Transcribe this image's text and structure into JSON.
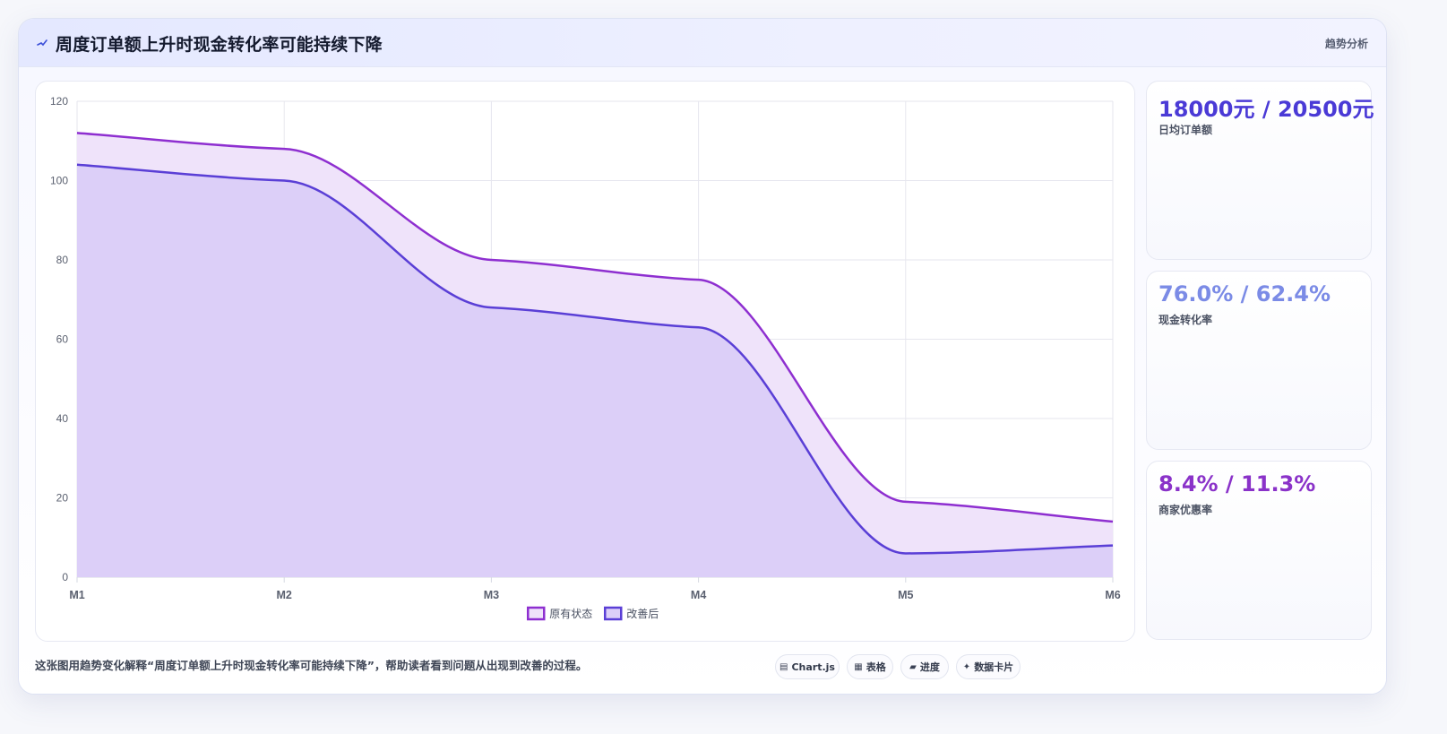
{
  "header": {
    "title": "周度订单额上升时现金转化率可能持续下降",
    "tag": "趋势分析"
  },
  "stats": [
    {
      "value": "18000元 / 20500元",
      "label": "日均订单额",
      "color": "#4a3ad6"
    },
    {
      "value": "76.0% / 62.4%",
      "label": "现金转化率",
      "color": "#7b8be6"
    },
    {
      "value": "8.4% / 11.3%",
      "label": "商家优惠率",
      "color": "#8a32c9"
    }
  ],
  "footer": {
    "caption": "这张图用趋势变化解释“周度订单额上升时现金转化率可能持续下降”，帮助读者看到问题从出现到改善的过程。",
    "pills": [
      {
        "icon": "chart-icon",
        "glyph": "▤",
        "label": "Chart.js"
      },
      {
        "icon": "table-icon",
        "glyph": "▦",
        "label": "表格"
      },
      {
        "icon": "progress-icon",
        "glyph": "▰",
        "label": "进度"
      },
      {
        "icon": "data-card-icon",
        "glyph": "✦",
        "label": "数据卡片"
      }
    ]
  },
  "chart_data": {
    "type": "area",
    "categories": [
      "M1",
      "M2",
      "M3",
      "M4",
      "M5",
      "M6"
    ],
    "ylim": [
      0,
      120
    ],
    "yticks": [
      0,
      20,
      40,
      60,
      80,
      100,
      120
    ],
    "grid": true,
    "legend_position": "bottom",
    "series": [
      {
        "name": "原有状态",
        "values": [
          112,
          108,
          80,
          75,
          19,
          14
        ],
        "color": "#8e2fd0",
        "fill": "#efe3fa"
      },
      {
        "name": "改善后",
        "values": [
          104,
          100,
          68,
          63,
          6,
          8
        ],
        "color": "#5a3fd6",
        "fill": "#dccff8"
      }
    ]
  }
}
